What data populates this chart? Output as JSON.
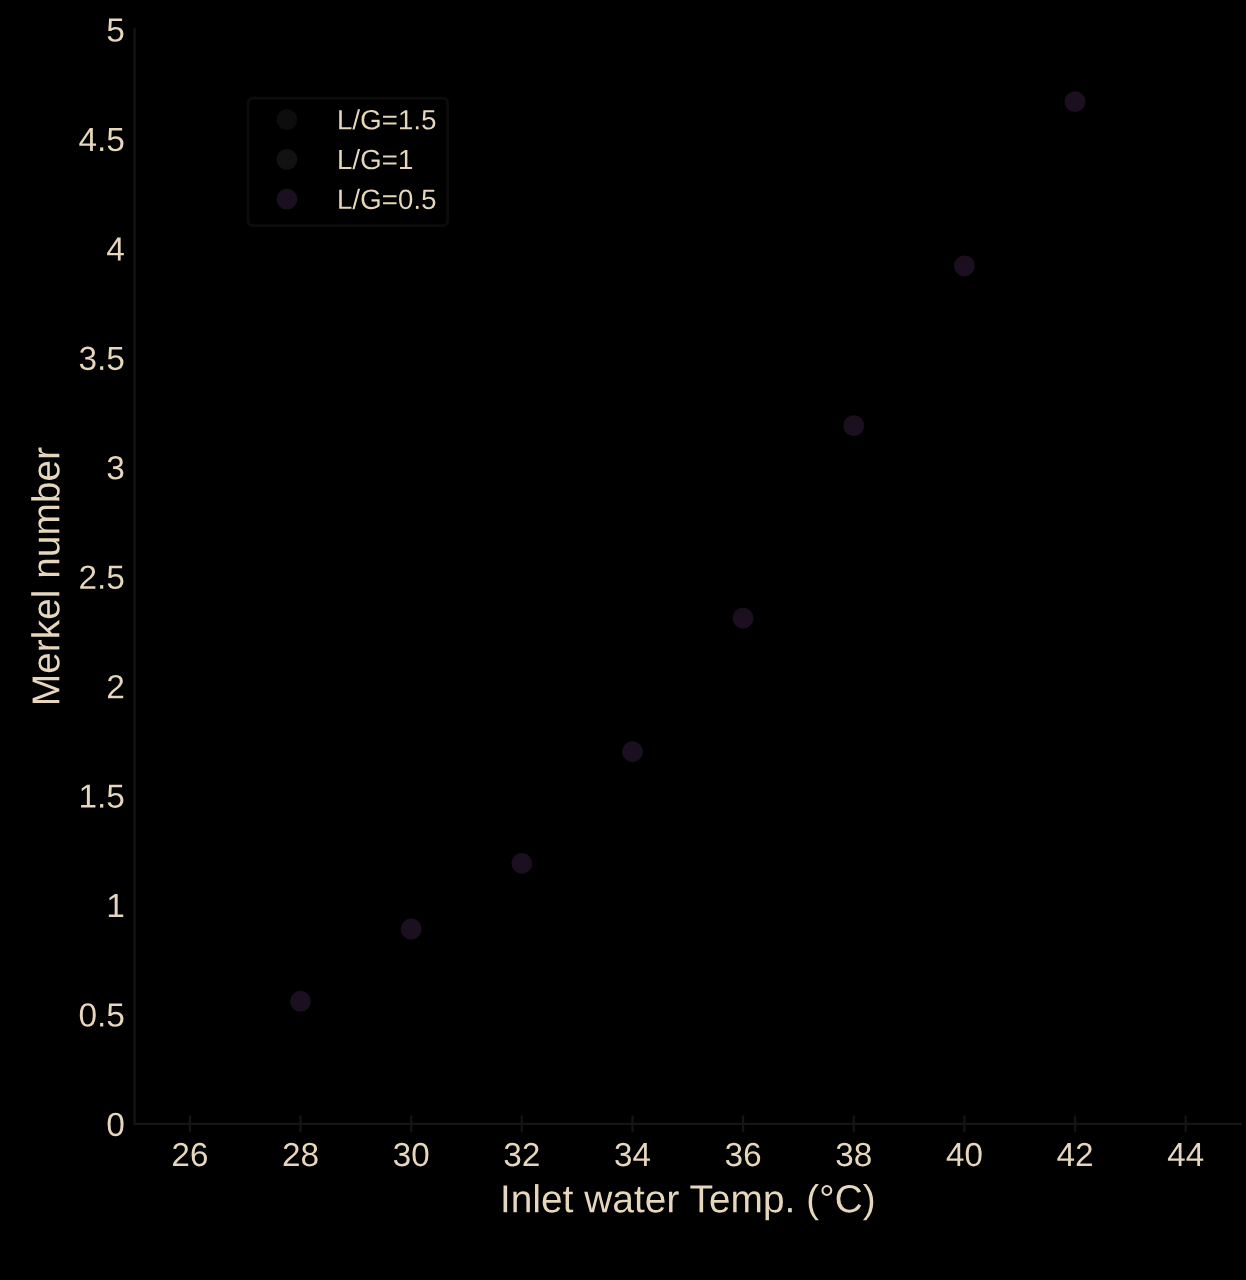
{
  "chart_data": {
    "type": "scatter",
    "xlabel": "Inlet water Temp. (°C)",
    "ylabel": "Merkel number",
    "x": [
      28,
      30,
      32,
      34,
      36,
      38,
      40,
      42
    ],
    "series": [
      {
        "name": "L/G=1.5",
        "color": "#0d0d0d",
        "values": [
          null,
          null,
          null,
          null,
          null,
          null,
          null,
          null
        ]
      },
      {
        "name": "L/G=1",
        "color": "#121212",
        "values": [
          null,
          null,
          null,
          null,
          null,
          null,
          null,
          null
        ]
      },
      {
        "name": "L/G=0.5",
        "color": "#1c1020",
        "values": [
          0.56,
          0.89,
          1.19,
          1.7,
          2.31,
          3.19,
          3.92,
          4.67
        ]
      }
    ],
    "xlim": [
      25,
      45
    ],
    "xticks": [
      26,
      28,
      30,
      32,
      34,
      36,
      38,
      40,
      42,
      44
    ],
    "ylim": [
      0,
      5
    ],
    "yticks": [
      0,
      0.5,
      1,
      1.5,
      2,
      2.5,
      3,
      3.5,
      4,
      4.5,
      5
    ],
    "grid": false,
    "legend": "top left",
    "marker": "circle"
  }
}
